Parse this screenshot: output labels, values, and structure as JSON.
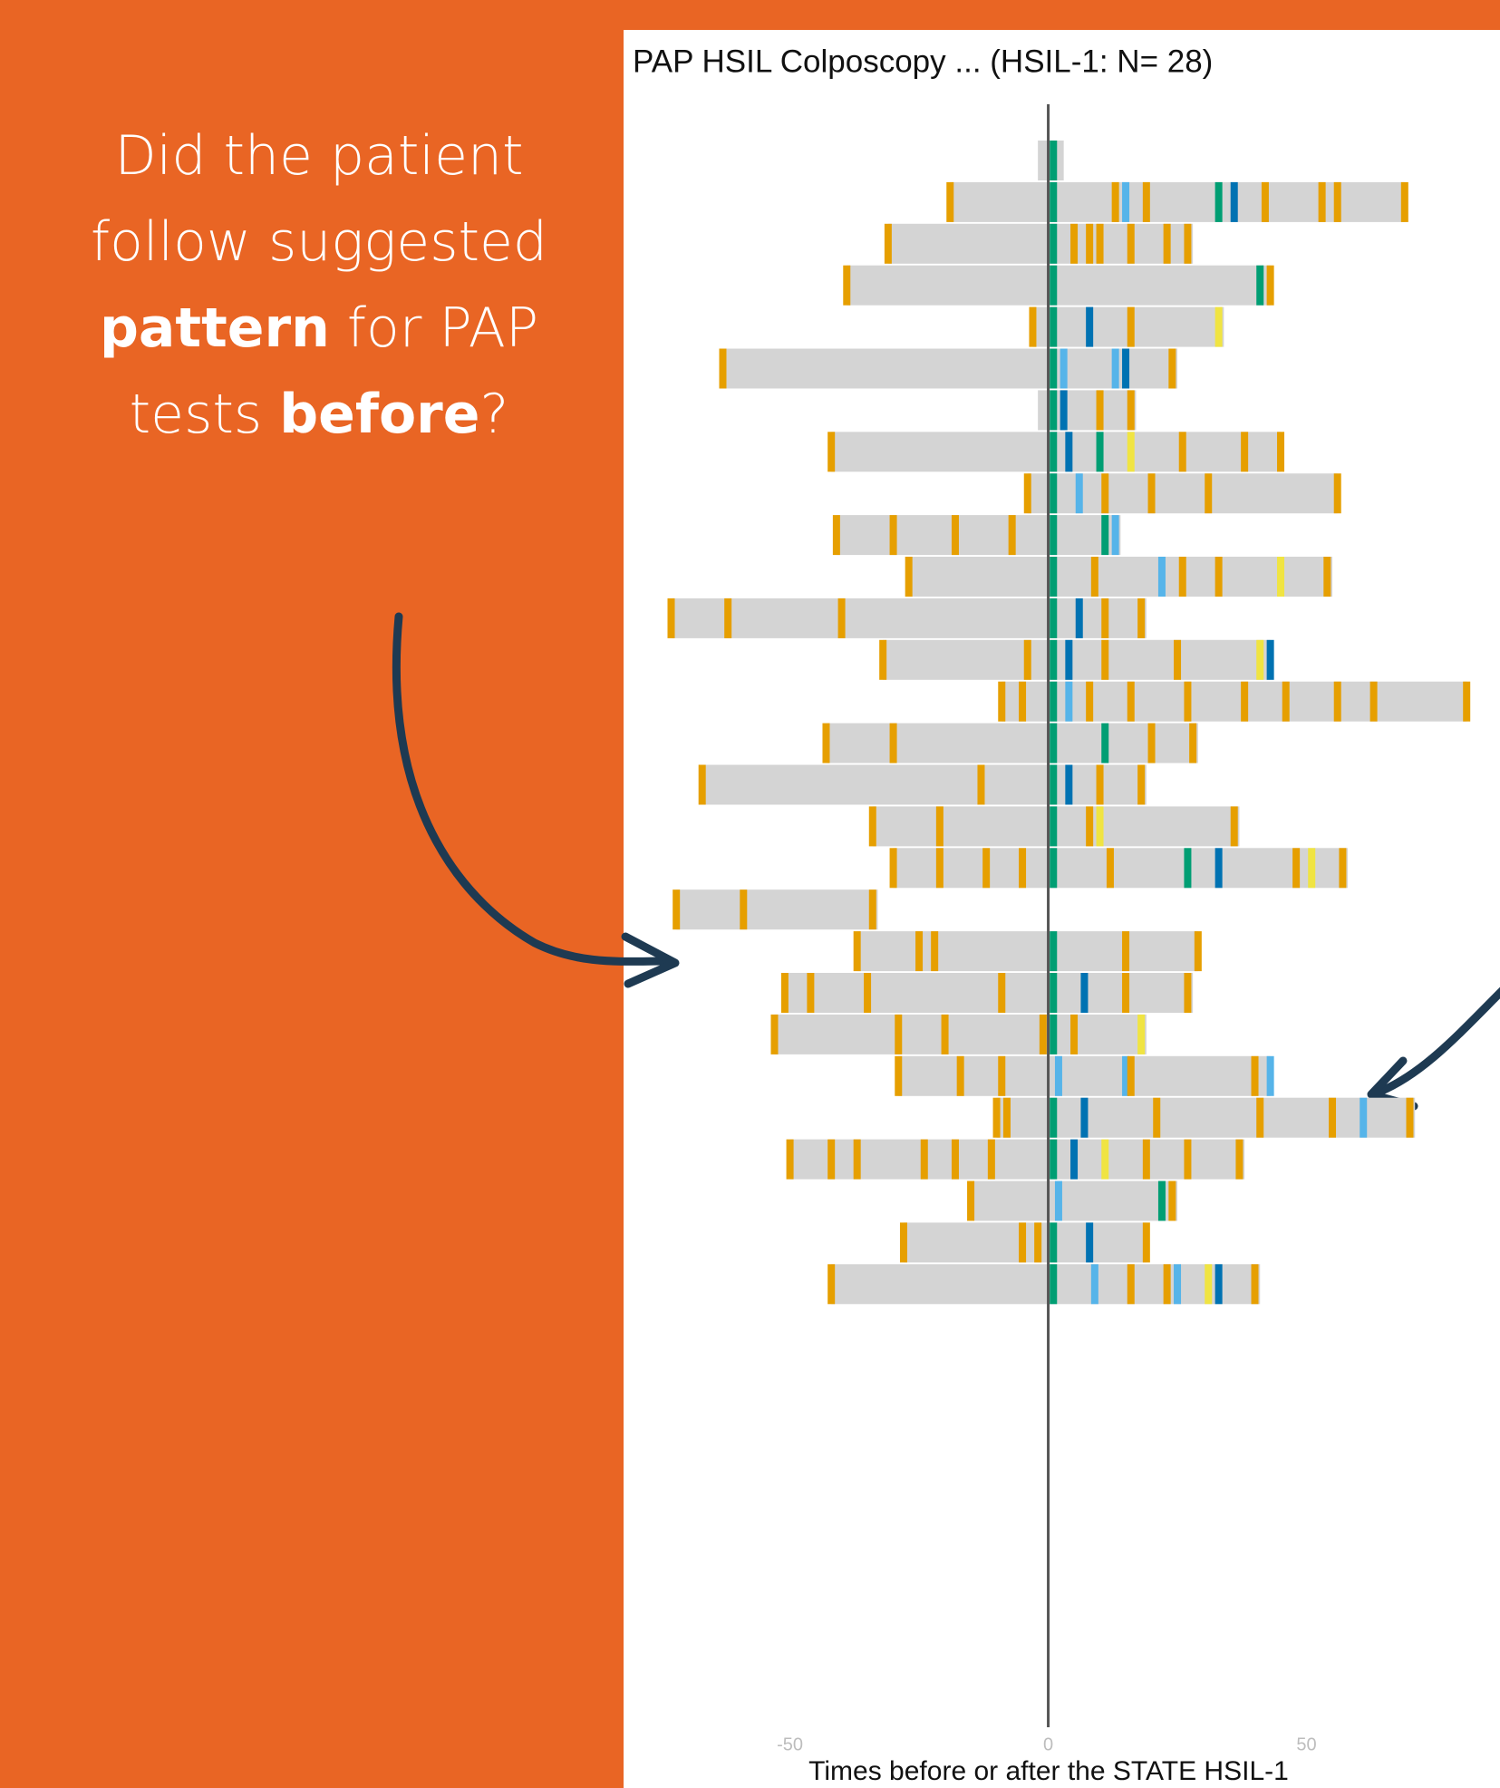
{
  "annotation": [
    [
      {
        "text": "Did the patient",
        "bold": false
      }
    ],
    [
      {
        "text": "follow suggested",
        "bold": false
      }
    ],
    [
      {
        "text": "pattern",
        "bold": true
      },
      {
        "text": " for PAP",
        "bold": false
      }
    ],
    [
      {
        "text": "tests ",
        "bold": false
      },
      {
        "text": "before",
        "bold": true
      },
      {
        "text": "?",
        "bold": false
      }
    ]
  ],
  "chart_data": {
    "type": "timeline",
    "title": "PAP HSIL Colposcopy ... (HSIL-1: N= 28)",
    "x_label": "Times before or after the STATE HSIL-1",
    "xlim": [
      -78,
      85
    ],
    "xticks": [
      -50,
      0,
      50
    ],
    "bar_color": "#d4d4d4",
    "reference_line_color": "#555555",
    "rows": [
      {
        "start": -2,
        "end": 3,
        "events": [
          {
            "x": 1,
            "color": "#009e73"
          }
        ]
      },
      {
        "start": -19,
        "end": 69,
        "events": [
          {
            "x": -19,
            "color": "#e69f00"
          },
          {
            "x": 1,
            "color": "#009e73"
          },
          {
            "x": 13,
            "color": "#e69f00"
          },
          {
            "x": 15,
            "color": "#56b4e9"
          },
          {
            "x": 19,
            "color": "#e69f00"
          },
          {
            "x": 33,
            "color": "#009e73"
          },
          {
            "x": 36,
            "color": "#0072b2"
          },
          {
            "x": 42,
            "color": "#e69f00"
          },
          {
            "x": 53,
            "color": "#e69f00"
          },
          {
            "x": 56,
            "color": "#e69f00"
          },
          {
            "x": 69,
            "color": "#e69f00"
          }
        ]
      },
      {
        "start": -31,
        "end": 28,
        "events": [
          {
            "x": -31,
            "color": "#e69f00"
          },
          {
            "x": 1,
            "color": "#009e73"
          },
          {
            "x": 5,
            "color": "#e69f00"
          },
          {
            "x": 8,
            "color": "#e69f00"
          },
          {
            "x": 10,
            "color": "#e69f00"
          },
          {
            "x": 16,
            "color": "#e69f00"
          },
          {
            "x": 23,
            "color": "#e69f00"
          },
          {
            "x": 27,
            "color": "#e69f00"
          }
        ]
      },
      {
        "start": -39,
        "end": 43,
        "events": [
          {
            "x": -39,
            "color": "#e69f00"
          },
          {
            "x": 1,
            "color": "#009e73"
          },
          {
            "x": 41,
            "color": "#009e73"
          },
          {
            "x": 43,
            "color": "#e69f00"
          }
        ]
      },
      {
        "start": -3,
        "end": 34,
        "events": [
          {
            "x": -3,
            "color": "#e69f00"
          },
          {
            "x": 1,
            "color": "#009e73"
          },
          {
            "x": 8,
            "color": "#0072b2"
          },
          {
            "x": 16,
            "color": "#e69f00"
          },
          {
            "x": 33,
            "color": "#f0e442"
          }
        ]
      },
      {
        "start": -63,
        "end": 25,
        "events": [
          {
            "x": -63,
            "color": "#e69f00"
          },
          {
            "x": 1,
            "color": "#009e73"
          },
          {
            "x": 3,
            "color": "#56b4e9"
          },
          {
            "x": 13,
            "color": "#56b4e9"
          },
          {
            "x": 15,
            "color": "#0072b2"
          },
          {
            "x": 24,
            "color": "#e69f00"
          }
        ]
      },
      {
        "start": -2,
        "end": 17,
        "events": [
          {
            "x": 1,
            "color": "#009e73"
          },
          {
            "x": 3,
            "color": "#0072b2"
          },
          {
            "x": 10,
            "color": "#e69f00"
          },
          {
            "x": 16,
            "color": "#e69f00"
          }
        ]
      },
      {
        "start": -42,
        "end": 45,
        "events": [
          {
            "x": -42,
            "color": "#e69f00"
          },
          {
            "x": 1,
            "color": "#009e73"
          },
          {
            "x": 4,
            "color": "#0072b2"
          },
          {
            "x": 10,
            "color": "#009e73"
          },
          {
            "x": 16,
            "color": "#f0e442"
          },
          {
            "x": 26,
            "color": "#e69f00"
          },
          {
            "x": 38,
            "color": "#e69f00"
          },
          {
            "x": 45,
            "color": "#e69f00"
          }
        ]
      },
      {
        "start": -4,
        "end": 56,
        "events": [
          {
            "x": -4,
            "color": "#e69f00"
          },
          {
            "x": 1,
            "color": "#009e73"
          },
          {
            "x": 6,
            "color": "#56b4e9"
          },
          {
            "x": 11,
            "color": "#e69f00"
          },
          {
            "x": 20,
            "color": "#e69f00"
          },
          {
            "x": 31,
            "color": "#e69f00"
          },
          {
            "x": 56,
            "color": "#e69f00"
          }
        ]
      },
      {
        "start": -41,
        "end": 14,
        "events": [
          {
            "x": -41,
            "color": "#e69f00"
          },
          {
            "x": -30,
            "color": "#e69f00"
          },
          {
            "x": -18,
            "color": "#e69f00"
          },
          {
            "x": -7,
            "color": "#e69f00"
          },
          {
            "x": 1,
            "color": "#009e73"
          },
          {
            "x": 11,
            "color": "#009e73"
          },
          {
            "x": 13,
            "color": "#56b4e9"
          }
        ]
      },
      {
        "start": -27,
        "end": 55,
        "events": [
          {
            "x": -27,
            "color": "#e69f00"
          },
          {
            "x": 1,
            "color": "#009e73"
          },
          {
            "x": 9,
            "color": "#e69f00"
          },
          {
            "x": 22,
            "color": "#56b4e9"
          },
          {
            "x": 26,
            "color": "#e69f00"
          },
          {
            "x": 33,
            "color": "#e69f00"
          },
          {
            "x": 45,
            "color": "#f0e442"
          },
          {
            "x": 54,
            "color": "#e69f00"
          }
        ]
      },
      {
        "start": -73,
        "end": 19,
        "events": [
          {
            "x": -73,
            "color": "#e69f00"
          },
          {
            "x": -62,
            "color": "#e69f00"
          },
          {
            "x": -40,
            "color": "#e69f00"
          },
          {
            "x": 1,
            "color": "#009e73"
          },
          {
            "x": 6,
            "color": "#0072b2"
          },
          {
            "x": 11,
            "color": "#e69f00"
          },
          {
            "x": 18,
            "color": "#e69f00"
          }
        ]
      },
      {
        "start": -32,
        "end": 43,
        "events": [
          {
            "x": -32,
            "color": "#e69f00"
          },
          {
            "x": -4,
            "color": "#e69f00"
          },
          {
            "x": 1,
            "color": "#009e73"
          },
          {
            "x": 4,
            "color": "#0072b2"
          },
          {
            "x": 11,
            "color": "#e69f00"
          },
          {
            "x": 25,
            "color": "#e69f00"
          },
          {
            "x": 41,
            "color": "#f0e442"
          },
          {
            "x": 43,
            "color": "#0072b2"
          }
        ]
      },
      {
        "start": -9,
        "end": 81,
        "events": [
          {
            "x": -9,
            "color": "#e69f00"
          },
          {
            "x": -5,
            "color": "#e69f00"
          },
          {
            "x": 1,
            "color": "#009e73"
          },
          {
            "x": 4,
            "color": "#56b4e9"
          },
          {
            "x": 8,
            "color": "#e69f00"
          },
          {
            "x": 16,
            "color": "#e69f00"
          },
          {
            "x": 27,
            "color": "#e69f00"
          },
          {
            "x": 38,
            "color": "#e69f00"
          },
          {
            "x": 46,
            "color": "#e69f00"
          },
          {
            "x": 56,
            "color": "#e69f00"
          },
          {
            "x": 63,
            "color": "#e69f00"
          },
          {
            "x": 81,
            "color": "#e69f00"
          }
        ]
      },
      {
        "start": -43,
        "end": 29,
        "events": [
          {
            "x": -43,
            "color": "#e69f00"
          },
          {
            "x": -30,
            "color": "#e69f00"
          },
          {
            "x": 1,
            "color": "#009e73"
          },
          {
            "x": 11,
            "color": "#009e73"
          },
          {
            "x": 20,
            "color": "#e69f00"
          },
          {
            "x": 28,
            "color": "#e69f00"
          }
        ]
      },
      {
        "start": -67,
        "end": 19,
        "events": [
          {
            "x": -67,
            "color": "#e69f00"
          },
          {
            "x": -13,
            "color": "#e69f00"
          },
          {
            "x": 1,
            "color": "#009e73"
          },
          {
            "x": 4,
            "color": "#0072b2"
          },
          {
            "x": 10,
            "color": "#e69f00"
          },
          {
            "x": 18,
            "color": "#e69f00"
          }
        ]
      },
      {
        "start": -34,
        "end": 37,
        "events": [
          {
            "x": -34,
            "color": "#e69f00"
          },
          {
            "x": -21,
            "color": "#e69f00"
          },
          {
            "x": 1,
            "color": "#009e73"
          },
          {
            "x": 8,
            "color": "#e69f00"
          },
          {
            "x": 10,
            "color": "#f0e442"
          },
          {
            "x": 36,
            "color": "#e69f00"
          }
        ]
      },
      {
        "start": -30,
        "end": 58,
        "events": [
          {
            "x": -30,
            "color": "#e69f00"
          },
          {
            "x": -21,
            "color": "#e69f00"
          },
          {
            "x": -12,
            "color": "#e69f00"
          },
          {
            "x": -5,
            "color": "#e69f00"
          },
          {
            "x": 1,
            "color": "#009e73"
          },
          {
            "x": 12,
            "color": "#e69f00"
          },
          {
            "x": 27,
            "color": "#009e73"
          },
          {
            "x": 33,
            "color": "#0072b2"
          },
          {
            "x": 48,
            "color": "#e69f00"
          },
          {
            "x": 51,
            "color": "#f0e442"
          },
          {
            "x": 57,
            "color": "#e69f00"
          }
        ]
      },
      {
        "start": -72,
        "end": -33,
        "events": [
          {
            "x": -72,
            "color": "#e69f00"
          },
          {
            "x": -59,
            "color": "#e69f00"
          },
          {
            "x": -34,
            "color": "#e69f00"
          }
        ]
      },
      {
        "start": -37,
        "end": 29,
        "events": [
          {
            "x": -37,
            "color": "#e69f00"
          },
          {
            "x": -25,
            "color": "#e69f00"
          },
          {
            "x": -22,
            "color": "#e69f00"
          },
          {
            "x": 1,
            "color": "#009e73"
          },
          {
            "x": 15,
            "color": "#e69f00"
          },
          {
            "x": 29,
            "color": "#e69f00"
          }
        ]
      },
      {
        "start": -51,
        "end": 28,
        "events": [
          {
            "x": -51,
            "color": "#e69f00"
          },
          {
            "x": -46,
            "color": "#e69f00"
          },
          {
            "x": -35,
            "color": "#e69f00"
          },
          {
            "x": -9,
            "color": "#e69f00"
          },
          {
            "x": 1,
            "color": "#009e73"
          },
          {
            "x": 7,
            "color": "#0072b2"
          },
          {
            "x": 15,
            "color": "#e69f00"
          },
          {
            "x": 27,
            "color": "#e69f00"
          }
        ]
      },
      {
        "start": -53,
        "end": 19,
        "events": [
          {
            "x": -53,
            "color": "#e69f00"
          },
          {
            "x": -29,
            "color": "#e69f00"
          },
          {
            "x": -20,
            "color": "#e69f00"
          },
          {
            "x": -1,
            "color": "#e69f00"
          },
          {
            "x": 1,
            "color": "#009e73"
          },
          {
            "x": 5,
            "color": "#e69f00"
          },
          {
            "x": 18,
            "color": "#f0e442"
          }
        ]
      },
      {
        "start": -29,
        "end": 43,
        "events": [
          {
            "x": -29,
            "color": "#e69f00"
          },
          {
            "x": -17,
            "color": "#e69f00"
          },
          {
            "x": -9,
            "color": "#e69f00"
          },
          {
            "x": 2,
            "color": "#56b4e9"
          },
          {
            "x": 15,
            "color": "#56b4e9"
          },
          {
            "x": 16,
            "color": "#e69f00"
          },
          {
            "x": 40,
            "color": "#e69f00"
          },
          {
            "x": 43,
            "color": "#56b4e9"
          }
        ]
      },
      {
        "start": -10,
        "end": 71,
        "events": [
          {
            "x": -10,
            "color": "#e69f00"
          },
          {
            "x": -8,
            "color": "#e69f00"
          },
          {
            "x": 1,
            "color": "#009e73"
          },
          {
            "x": 7,
            "color": "#0072b2"
          },
          {
            "x": 21,
            "color": "#e69f00"
          },
          {
            "x": 41,
            "color": "#e69f00"
          },
          {
            "x": 55,
            "color": "#e69f00"
          },
          {
            "x": 61,
            "color": "#56b4e9"
          },
          {
            "x": 70,
            "color": "#e69f00"
          }
        ]
      },
      {
        "start": -50,
        "end": 38,
        "events": [
          {
            "x": -50,
            "color": "#e69f00"
          },
          {
            "x": -42,
            "color": "#e69f00"
          },
          {
            "x": -37,
            "color": "#e69f00"
          },
          {
            "x": -24,
            "color": "#e69f00"
          },
          {
            "x": -18,
            "color": "#e69f00"
          },
          {
            "x": -11,
            "color": "#e69f00"
          },
          {
            "x": 1,
            "color": "#009e73"
          },
          {
            "x": 5,
            "color": "#0072b2"
          },
          {
            "x": 11,
            "color": "#f0e442"
          },
          {
            "x": 19,
            "color": "#e69f00"
          },
          {
            "x": 27,
            "color": "#e69f00"
          },
          {
            "x": 37,
            "color": "#e69f00"
          }
        ]
      },
      {
        "start": -15,
        "end": 25,
        "events": [
          {
            "x": -15,
            "color": "#e69f00"
          },
          {
            "x": 2,
            "color": "#56b4e9"
          },
          {
            "x": 22,
            "color": "#009e73"
          },
          {
            "x": 24,
            "color": "#e69f00"
          }
        ]
      },
      {
        "start": -28,
        "end": 19,
        "events": [
          {
            "x": -28,
            "color": "#e69f00"
          },
          {
            "x": -5,
            "color": "#e69f00"
          },
          {
            "x": -2,
            "color": "#e69f00"
          },
          {
            "x": 1,
            "color": "#009e73"
          },
          {
            "x": 8,
            "color": "#0072b2"
          },
          {
            "x": 19,
            "color": "#e69f00"
          }
        ]
      },
      {
        "start": -42,
        "end": 41,
        "events": [
          {
            "x": -42,
            "color": "#e69f00"
          },
          {
            "x": 1,
            "color": "#009e73"
          },
          {
            "x": 9,
            "color": "#56b4e9"
          },
          {
            "x": 16,
            "color": "#e69f00"
          },
          {
            "x": 23,
            "color": "#e69f00"
          },
          {
            "x": 25,
            "color": "#56b4e9"
          },
          {
            "x": 31,
            "color": "#f0e442"
          },
          {
            "x": 33,
            "color": "#0072b2"
          },
          {
            "x": 40,
            "color": "#e69f00"
          }
        ]
      }
    ]
  }
}
